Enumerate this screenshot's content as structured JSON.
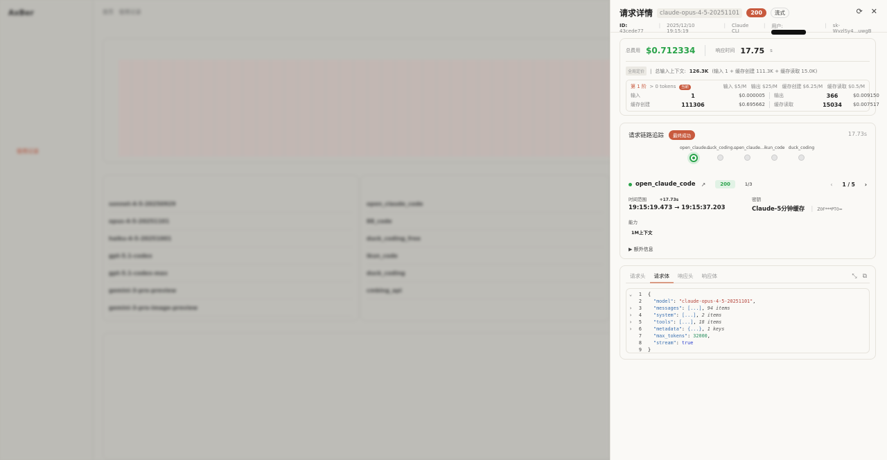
{
  "background": {
    "app_name": "AxBer",
    "breadcrumb": [
      "首页",
      "使用记录"
    ],
    "nav_active": "使用记录",
    "model_rows": [
      "sonnet-4-5-20250929",
      "opus-4-5-20251101",
      "haiku-4-5-20251001",
      "gpt-5.1-codex",
      "gpt-5.1-codex-max",
      "gemini-3-pro-preview",
      "gemini-3-pro-image-preview"
    ],
    "provider_rows": [
      "open_claude_code",
      "88_code",
      "duck_coding_free",
      "ikun_code",
      "duck_coding",
      "cmbing_api"
    ]
  },
  "header": {
    "title": "请求详情",
    "model": "claude-opus-4-5-20251101",
    "status_code": "200",
    "mode": "流式",
    "id_label": "ID:",
    "id": "43cede77",
    "datetime": "2025/12/10 19:15:19",
    "client": "Claude CLI",
    "user_label": "用户:",
    "key": "sk-WvzlSy4...uwgB",
    "refresh_icon": "refresh-icon",
    "close_icon": "close-icon"
  },
  "cost": {
    "total_label": "总费用",
    "total": "$0.712334",
    "rt_label": "响应时间",
    "rt": "17.75",
    "rt_unit": "s",
    "pricing_tag": "全局定价",
    "ctx_label": "总输入上下文:",
    "ctx_value": "126.3K",
    "ctx_detail": "(输入 1 + 缓存创建 111.3K + 缓存读取 15.0K)",
    "tier": {
      "name": "第 1 阶",
      "range": "> 0 tokens",
      "current": "当前",
      "prices": "输入 $5/M   输出 $25/M   缓存创建 $6.25/M   缓存读取 $0.5/M",
      "rows": [
        {
          "l1": "输入",
          "n1": "1",
          "p1": "$0.000005",
          "l2": "输出",
          "n2": "366",
          "p2": "$0.009150"
        },
        {
          "l1": "缓存创建",
          "n1": "111306",
          "p1": "$0.695662",
          "l2": "缓存读取",
          "n2": "15034",
          "p2": "$0.007517"
        }
      ]
    }
  },
  "chain": {
    "title": "请求链路追踪",
    "result": "最终成功",
    "total_time": "17.73s",
    "nodes": [
      "open_claude...",
      "duck_coding...",
      "open_claude...",
      "ikun_code",
      "duck_coding"
    ],
    "active_node": 0,
    "provider": "open_claude_code",
    "code": "200",
    "attempt": "1/3",
    "page": "1 / 5",
    "time_label": "时间范围",
    "time_delta": "+17.73s",
    "time_range": "19:15:19.473 → 19:15:37.203",
    "key_label": "密钥",
    "key_name": "Claude-5分钟缓存",
    "key_mask": "Z0F***PT0=",
    "cap_label": "能力",
    "cap": "1M上下文",
    "extra": "▶ 额外信息"
  },
  "body": {
    "tabs": [
      "请求头",
      "请求体",
      "响应头",
      "响应体"
    ],
    "active_tab": 1,
    "lines": [
      {
        "n": "1",
        "ar": "⌄",
        "html": "{"
      },
      {
        "n": "2",
        "ar": "",
        "k": "\"model\"",
        "v": "\"claude-opus-4-5-20251101\"",
        "vt": "str",
        "tail": ","
      },
      {
        "n": "3",
        "ar": "›",
        "k": "\"messages\"",
        "v": "[...]",
        "vt": "br",
        "tail": ",",
        "note": "94 items"
      },
      {
        "n": "4",
        "ar": "›",
        "k": "\"system\"",
        "v": "[...]",
        "vt": "br",
        "tail": ",",
        "note": "2 items"
      },
      {
        "n": "5",
        "ar": "›",
        "k": "\"tools\"",
        "v": "[...]",
        "vt": "br",
        "tail": ",",
        "note": "18 items"
      },
      {
        "n": "6",
        "ar": "›",
        "k": "\"metadata\"",
        "v": "{...}",
        "vt": "br",
        "tail": ",",
        "note": "1 keys"
      },
      {
        "n": "7",
        "ar": "",
        "k": "\"max_tokens\"",
        "v": "32000",
        "vt": "num",
        "tail": ","
      },
      {
        "n": "8",
        "ar": "",
        "k": "\"stream\"",
        "v": "true",
        "vt": "kw",
        "tail": ""
      },
      {
        "n": "9",
        "ar": "",
        "html": "}"
      }
    ]
  }
}
